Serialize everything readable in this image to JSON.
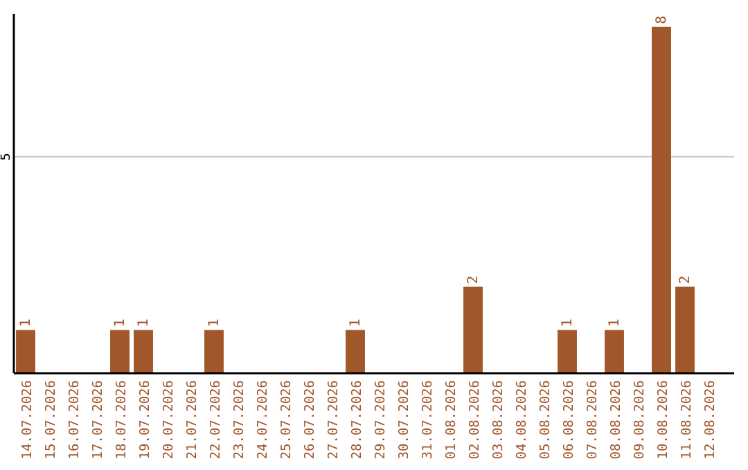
{
  "chart_data": {
    "type": "bar",
    "categories": [
      "14.07.2026",
      "15.07.2026",
      "16.07.2026",
      "17.07.2026",
      "18.07.2026",
      "19.07.2026",
      "20.07.2026",
      "21.07.2026",
      "22.07.2026",
      "23.07.2026",
      "24.07.2026",
      "25.07.2026",
      "26.07.2026",
      "27.07.2026",
      "28.07.2026",
      "29.07.2026",
      "30.07.2026",
      "31.07.2026",
      "01.08.2026",
      "02.08.2026",
      "03.08.2026",
      "04.08.2026",
      "05.08.2026",
      "06.08.2026",
      "07.08.2026",
      "08.08.2026",
      "09.08.2026",
      "10.08.2026",
      "11.08.2026",
      "12.08.2026"
    ],
    "values": [
      1,
      0,
      0,
      0,
      1,
      1,
      0,
      0,
      1,
      0,
      0,
      0,
      0,
      0,
      1,
      0,
      0,
      0,
      0,
      2,
      0,
      0,
      0,
      1,
      0,
      1,
      0,
      8,
      2,
      0
    ],
    "value_labels": [
      "1",
      null,
      null,
      null,
      "1",
      "1",
      null,
      null,
      "1",
      null,
      null,
      null,
      null,
      null,
      "1",
      null,
      null,
      null,
      null,
      "2",
      null,
      null,
      null,
      "1",
      null,
      "1",
      null,
      "8",
      "2",
      null
    ],
    "color": "#a0572a",
    "ylim": [
      0,
      8.3
    ],
    "yticks": [
      5
    ],
    "grid": "y"
  }
}
